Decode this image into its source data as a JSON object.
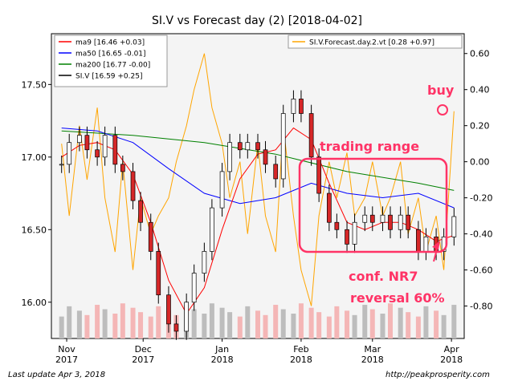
{
  "chart_data": {
    "type": "candlestick",
    "title": "SI.V vs Forecast day (2)  [2018-04-02]",
    "x_ticks": [
      {
        "date": "2017-11-01",
        "label": "Nov\n2017"
      },
      {
        "date": "2017-12-01",
        "label": "Dec\n2017"
      },
      {
        "date": "2018-01-01",
        "label": "Jan\n2018"
      },
      {
        "date": "2018-02-01",
        "label": "Feb\n2018"
      },
      {
        "date": "2018-03-01",
        "label": "Mar\n2018"
      },
      {
        "date": "2018-04-01",
        "label": "Apr\n2018"
      }
    ],
    "x_range": [
      "2017-10-26",
      "2018-04-06"
    ],
    "y_left": {
      "ticks": [
        16.0,
        16.5,
        17.0,
        17.5
      ],
      "tick_labels": [
        "16.00",
        "16.50",
        "17.00",
        "17.50"
      ],
      "range": [
        15.75,
        17.85
      ]
    },
    "y_right": {
      "ticks": [
        -0.8,
        -0.6,
        -0.4,
        -0.2,
        0.0,
        0.2,
        0.4,
        0.6
      ],
      "tick_labels": [
        "-0.80",
        "-0.60",
        "-0.40",
        "-0.20",
        "0.00",
        "0.20",
        "0.40",
        "0.60"
      ],
      "range": [
        -0.98,
        0.71
      ]
    },
    "legend_left": {
      "placement": "top-left",
      "entries": [
        {
          "label": "ma9 [16.46 +0.03]",
          "color": "#ff0000"
        },
        {
          "label": "ma50 [16.65 -0.01]",
          "color": "#0000ff"
        },
        {
          "label": "ma200 [16.77 -0.00]",
          "color": "#008000"
        },
        {
          "label": "SI.V [16.59 +0.25]",
          "color": "#000000"
        }
      ]
    },
    "legend_right": {
      "placement": "top-right",
      "entries": [
        {
          "label": "SI.V.Forecast.day.2.vt [0.28 +0.97]",
          "color": "#ffa500"
        }
      ]
    },
    "close_series": [
      [
        "2017-10-30",
        16.95
      ],
      [
        "2017-11-02",
        17.1
      ],
      [
        "2017-11-06",
        17.15
      ],
      [
        "2017-11-09",
        17.05
      ],
      [
        "2017-11-13",
        17.0
      ],
      [
        "2017-11-16",
        17.15
      ],
      [
        "2017-11-20",
        16.95
      ],
      [
        "2017-11-23",
        16.9
      ],
      [
        "2017-11-27",
        16.7
      ],
      [
        "2017-11-30",
        16.55
      ],
      [
        "2017-12-04",
        16.35
      ],
      [
        "2017-12-07",
        16.05
      ],
      [
        "2017-12-11",
        15.85
      ],
      [
        "2017-12-14",
        15.8
      ],
      [
        "2017-12-18",
        16.0
      ],
      [
        "2017-12-21",
        16.2
      ],
      [
        "2017-12-25",
        16.35
      ],
      [
        "2017-12-28",
        16.65
      ],
      [
        "2018-01-01",
        16.9
      ],
      [
        "2018-01-04",
        17.1
      ],
      [
        "2018-01-08",
        17.05
      ],
      [
        "2018-01-11",
        17.1
      ],
      [
        "2018-01-15",
        17.05
      ],
      [
        "2018-01-18",
        16.95
      ],
      [
        "2018-01-22",
        16.85
      ],
      [
        "2018-01-25",
        17.3
      ],
      [
        "2018-01-29",
        17.4
      ],
      [
        "2018-02-01",
        17.3
      ],
      [
        "2018-02-05",
        17.0
      ],
      [
        "2018-02-08",
        16.75
      ],
      [
        "2018-02-12",
        16.55
      ],
      [
        "2018-02-15",
        16.5
      ],
      [
        "2018-02-19",
        16.4
      ],
      [
        "2018-02-22",
        16.55
      ],
      [
        "2018-02-26",
        16.6
      ],
      [
        "2018-03-01",
        16.55
      ],
      [
        "2018-03-05",
        16.6
      ],
      [
        "2018-03-08",
        16.5
      ],
      [
        "2018-03-12",
        16.6
      ],
      [
        "2018-03-15",
        16.5
      ],
      [
        "2018-03-19",
        16.35
      ],
      [
        "2018-03-22",
        16.45
      ],
      [
        "2018-03-26",
        16.35
      ],
      [
        "2018-03-29",
        16.45
      ],
      [
        "2018-04-02",
        16.59
      ]
    ],
    "ma9_series": [
      [
        "2017-10-30",
        17.0
      ],
      [
        "2017-11-06",
        17.08
      ],
      [
        "2017-11-13",
        17.1
      ],
      [
        "2017-11-20",
        17.05
      ],
      [
        "2017-11-27",
        16.88
      ],
      [
        "2017-12-04",
        16.55
      ],
      [
        "2017-12-11",
        16.15
      ],
      [
        "2017-12-18",
        15.92
      ],
      [
        "2017-12-25",
        16.1
      ],
      [
        "2018-01-01",
        16.5
      ],
      [
        "2018-01-08",
        16.85
      ],
      [
        "2018-01-15",
        17.02
      ],
      [
        "2018-01-22",
        17.05
      ],
      [
        "2018-01-29",
        17.2
      ],
      [
        "2018-02-05",
        17.12
      ],
      [
        "2018-02-12",
        16.82
      ],
      [
        "2018-02-19",
        16.55
      ],
      [
        "2018-02-26",
        16.5
      ],
      [
        "2018-03-05",
        16.55
      ],
      [
        "2018-03-12",
        16.55
      ],
      [
        "2018-03-19",
        16.5
      ],
      [
        "2018-03-26",
        16.42
      ],
      [
        "2018-04-02",
        16.46
      ]
    ],
    "ma50_series": [
      [
        "2017-10-30",
        17.2
      ],
      [
        "2017-11-13",
        17.18
      ],
      [
        "2017-11-27",
        17.1
      ],
      [
        "2017-12-11",
        16.92
      ],
      [
        "2017-12-25",
        16.75
      ],
      [
        "2018-01-08",
        16.68
      ],
      [
        "2018-01-22",
        16.72
      ],
      [
        "2018-02-05",
        16.82
      ],
      [
        "2018-02-19",
        16.75
      ],
      [
        "2018-03-05",
        16.72
      ],
      [
        "2018-03-19",
        16.75
      ],
      [
        "2018-04-02",
        16.65
      ]
    ],
    "ma200_series": [
      [
        "2017-10-30",
        17.18
      ],
      [
        "2017-11-27",
        17.15
      ],
      [
        "2017-12-25",
        17.1
      ],
      [
        "2018-01-22",
        17.02
      ],
      [
        "2018-02-19",
        16.9
      ],
      [
        "2018-03-19",
        16.82
      ],
      [
        "2018-04-02",
        16.77
      ]
    ],
    "forecast_series": [
      [
        "2017-10-30",
        0.1
      ],
      [
        "2017-11-02",
        -0.3
      ],
      [
        "2017-11-06",
        0.2
      ],
      [
        "2017-11-09",
        -0.1
      ],
      [
        "2017-11-13",
        0.3
      ],
      [
        "2017-11-16",
        -0.2
      ],
      [
        "2017-11-20",
        -0.5
      ],
      [
        "2017-11-23",
        0.0
      ],
      [
        "2017-11-27",
        -0.6
      ],
      [
        "2017-11-30",
        -0.2
      ],
      [
        "2017-12-04",
        -0.4
      ],
      [
        "2017-12-07",
        -0.3
      ],
      [
        "2017-12-11",
        -0.2
      ],
      [
        "2017-12-14",
        0.0
      ],
      [
        "2017-12-18",
        0.2
      ],
      [
        "2017-12-21",
        0.4
      ],
      [
        "2017-12-25",
        0.6
      ],
      [
        "2017-12-28",
        0.3
      ],
      [
        "2018-01-01",
        0.1
      ],
      [
        "2018-01-04",
        -0.2
      ],
      [
        "2018-01-08",
        0.0
      ],
      [
        "2018-01-11",
        -0.4
      ],
      [
        "2018-01-15",
        0.1
      ],
      [
        "2018-01-18",
        -0.3
      ],
      [
        "2018-01-22",
        -0.5
      ],
      [
        "2018-01-25",
        0.2
      ],
      [
        "2018-01-29",
        -0.3
      ],
      [
        "2018-02-01",
        -0.6
      ],
      [
        "2018-02-05",
        -0.8
      ],
      [
        "2018-02-08",
        -0.3
      ],
      [
        "2018-02-12",
        0.0
      ],
      [
        "2018-02-15",
        -0.2
      ],
      [
        "2018-02-19",
        0.05
      ],
      [
        "2018-02-22",
        -0.3
      ],
      [
        "2018-02-26",
        -0.2
      ],
      [
        "2018-03-01",
        0.0
      ],
      [
        "2018-03-05",
        -0.3
      ],
      [
        "2018-03-08",
        -0.2
      ],
      [
        "2018-03-12",
        0.0
      ],
      [
        "2018-03-15",
        -0.4
      ],
      [
        "2018-03-19",
        -0.2
      ],
      [
        "2018-03-22",
        -0.5
      ],
      [
        "2018-03-26",
        -0.3
      ],
      [
        "2018-03-29",
        -0.6
      ],
      [
        "2018-04-02",
        0.28
      ]
    ],
    "volume_level": 0.12,
    "annotations": {
      "box_label": "trading range",
      "buy_label": "buy",
      "conf_label": "conf. NR7",
      "reversal_label": "reversal 60%",
      "color": "#ff3366"
    },
    "colors": {
      "up": "#ffffff",
      "down": "#d62728",
      "wick": "#000000",
      "ma9": "#ff0000",
      "ma50": "#0000ff",
      "ma200": "#008000",
      "forecast": "#ffa500",
      "vol_up": "#bdbdbd",
      "vol_down": "#f4b6b6",
      "plot_bg": "#f4f4f4",
      "annotation": "#ff3366"
    }
  },
  "footer": {
    "left": "Last update Apr  3, 2018",
    "right": "http://peakprosperity.com"
  }
}
